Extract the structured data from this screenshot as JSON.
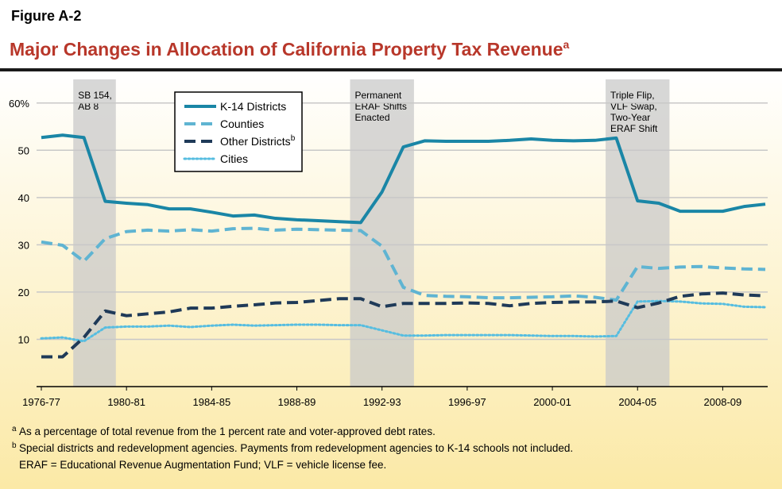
{
  "chart_data": {
    "type": "line",
    "figure_label": "Figure A-2",
    "title": "Major Changes in Allocation of California Property Tax Revenue",
    "title_note": "a",
    "categories": [
      "1976-77",
      null,
      null,
      null,
      "1980-81",
      null,
      null,
      null,
      "1984-85",
      null,
      null,
      null,
      "1988-89",
      null,
      null,
      null,
      "1992-93",
      null,
      null,
      null,
      "1996-97",
      null,
      null,
      null,
      "2000-01",
      null,
      null,
      null,
      "2004-05",
      null,
      null,
      null,
      "2008-09",
      null,
      null
    ],
    "ylim": [
      0,
      65
    ],
    "yticks": [
      10,
      20,
      30,
      40,
      50,
      {
        "value": 60,
        "label": "60%"
      }
    ],
    "grid": true,
    "legend": "upper-left",
    "series": [
      {
        "name": "K-14 Districts",
        "color": "#1a86a6",
        "style": "solid",
        "values": [
          52.7,
          53.2,
          52.7,
          39.2,
          38.8,
          38.5,
          37.6,
          37.6,
          36.9,
          36.1,
          36.3,
          35.6,
          35.3,
          35.1,
          34.9,
          34.7,
          41.2,
          50.7,
          52.0,
          51.9,
          51.9,
          51.9,
          52.1,
          52.4,
          52.1,
          52.0,
          52.1,
          52.6,
          39.3,
          38.8,
          37.1,
          37.1,
          37.1,
          38.1,
          38.6
        ]
      },
      {
        "name": "Counties",
        "color": "#5fb4d2",
        "style": "dashed",
        "values": [
          30.6,
          29.9,
          26.5,
          31.3,
          32.8,
          33.1,
          32.9,
          33.2,
          32.9,
          33.4,
          33.5,
          33.1,
          33.3,
          33.2,
          33.1,
          33.0,
          29.7,
          21.0,
          19.3,
          19.1,
          19.0,
          18.8,
          18.8,
          18.9,
          19.0,
          19.2,
          18.9,
          18.3,
          25.4,
          25.0,
          25.3,
          25.4,
          25.1,
          24.9,
          24.8
        ]
      },
      {
        "name": "Other Districts",
        "name_note": "b",
        "color": "#1f3a58",
        "style": "dashed",
        "values": [
          6.3,
          6.3,
          10.4,
          16.0,
          15.0,
          15.4,
          15.8,
          16.6,
          16.6,
          17.0,
          17.3,
          17.7,
          17.8,
          18.2,
          18.6,
          18.6,
          16.9,
          17.6,
          17.6,
          17.6,
          17.7,
          17.6,
          17.1,
          17.6,
          17.8,
          17.9,
          17.9,
          18.1,
          16.7,
          17.7,
          19.1,
          19.6,
          19.8,
          19.4,
          19.2
        ]
      },
      {
        "name": "Cities",
        "color": "#56bde0",
        "style": "dotted",
        "values": [
          10.2,
          10.4,
          9.6,
          12.5,
          12.7,
          12.7,
          12.9,
          12.6,
          12.9,
          13.1,
          12.9,
          13.0,
          13.1,
          13.1,
          13.0,
          13.0,
          11.9,
          10.8,
          10.8,
          10.9,
          10.9,
          10.9,
          10.9,
          10.8,
          10.7,
          10.7,
          10.6,
          10.7,
          18.0,
          18.1,
          18.0,
          17.6,
          17.5,
          16.9,
          16.8
        ]
      }
    ],
    "shaded_periods": [
      {
        "span": [
          2,
          3
        ],
        "label_lines": [
          "SB 154,",
          "AB 8"
        ]
      },
      {
        "span": [
          15,
          17
        ],
        "label_lines": [
          "Permanent",
          "ERAF Shifts",
          "Enacted"
        ]
      },
      {
        "span": [
          27,
          29
        ],
        "label_lines": [
          "Triple Flip,",
          "VLF Swap,",
          "Two-Year",
          "ERAF Shift"
        ]
      }
    ],
    "footnotes": [
      {
        "mark": "a",
        "text": "As a percentage of total revenue from the 1 percent rate and voter-approved debt rates."
      },
      {
        "mark": "b",
        "text": "Special districts and redevelopment agencies. Payments from redevelopment agencies to K-14 schools not included."
      },
      {
        "text": "ERAF = Educational Revenue Augmentation Fund; VLF = vehicle license fee."
      }
    ]
  }
}
